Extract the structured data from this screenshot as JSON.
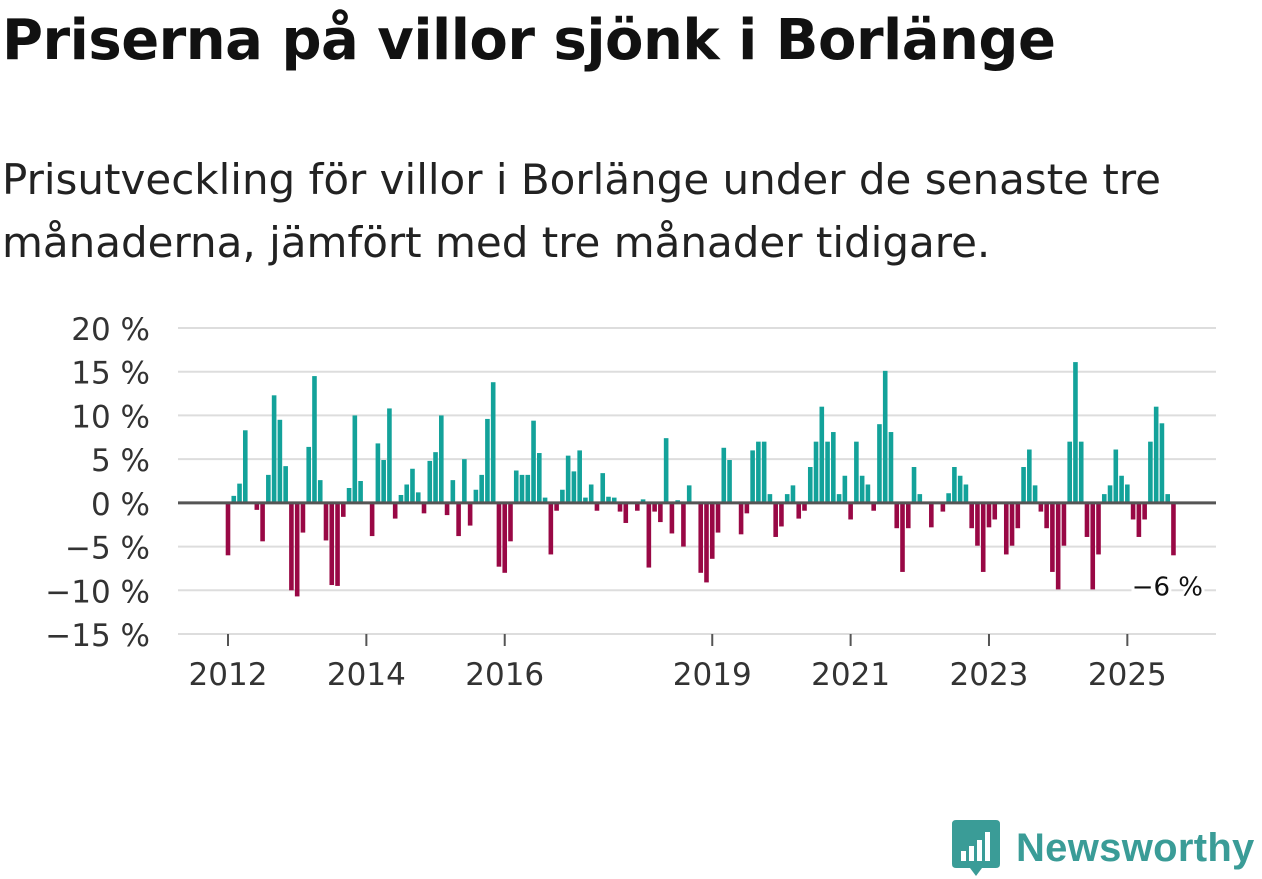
{
  "header": {
    "title": "Priserna på villor sjönk i Borlänge",
    "subtitle": "Prisutveckling för villor i Borlänge under de senaste tre månaderna, jämfört med tre månader tidigare."
  },
  "brand": {
    "name": "Newsworthy",
    "logo_icon": "bar-chart-speech-bubble-icon"
  },
  "colors": {
    "positive": "#13a29a",
    "negative": "#990845",
    "grid": "#dddddd",
    "zero_line": "#555555",
    "tick_text": "#333333",
    "brand": "#3a9c97"
  },
  "chart_data": {
    "type": "bar",
    "title": "Priserna på villor sjönk i Borlänge",
    "subtitle": "Prisutveckling för villor i Borlänge under de senaste tre månaderna, jämfört med tre månader tidigare.",
    "xlabel": "",
    "ylabel": "",
    "unit": "%",
    "ylim": [
      -15,
      20
    ],
    "yticks": [
      20,
      15,
      10,
      5,
      0,
      -5,
      -10,
      -15
    ],
    "ytick_labels": [
      "20 %",
      "15 %",
      "10 %",
      "5 %",
      "0 %",
      "−5 %",
      "−10 %",
      "−15 %"
    ],
    "xticks": [
      {
        "label": "2012",
        "index": 0
      },
      {
        "label": "2014",
        "index": 24
      },
      {
        "label": "2016",
        "index": 48
      },
      {
        "label": "2019",
        "index": 84
      },
      {
        "label": "2021",
        "index": 108
      },
      {
        "label": "2023",
        "index": 132
      },
      {
        "label": "2025",
        "index": 156
      }
    ],
    "series_start": "2012-01",
    "frequency": "monthly",
    "values": [
      -6,
      0.8,
      2.2,
      8.3,
      0,
      -0.8,
      -4.4,
      3.2,
      12.3,
      9.5,
      4.2,
      -10,
      -10.7,
      -3.4,
      6.4,
      14.5,
      2.6,
      -4.3,
      -9.4,
      -9.5,
      -1.6,
      1.7,
      10,
      2.5,
      0,
      -3.8,
      6.8,
      4.9,
      10.8,
      -1.8,
      0.9,
      2.1,
      3.9,
      1.2,
      -1.2,
      4.8,
      5.8,
      10,
      -1.4,
      2.6,
      -3.8,
      5,
      -2.6,
      1.5,
      3.2,
      9.6,
      13.8,
      -7.3,
      -8,
      -4.4,
      3.7,
      3.2,
      3.2,
      9.4,
      5.7,
      0.6,
      -5.9,
      -0.9,
      1.5,
      5.4,
      3.6,
      6,
      0.6,
      2.1,
      -0.9,
      3.4,
      0.7,
      0.6,
      -1,
      -2.3,
      0.1,
      -0.9,
      0.4,
      -7.4,
      -1,
      -2.2,
      7.4,
      -3.5,
      0.3,
      -5,
      2,
      0,
      -8,
      -9.1,
      -6.4,
      -3.4,
      6.3,
      4.9,
      0,
      -3.6,
      -1.2,
      6,
      7,
      7,
      1,
      -3.9,
      -2.7,
      1,
      2,
      -1.8,
      -0.9,
      4.1,
      7,
      11,
      7,
      8.1,
      1,
      3.1,
      -1.9,
      7,
      3.1,
      2.1,
      -0.9,
      9,
      15.1,
      8.1,
      -2.9,
      -7.9,
      -2.9,
      4.1,
      1,
      0,
      -2.8,
      0,
      -1,
      1.1,
      4.1,
      3.1,
      2.1,
      -2.9,
      -4.9,
      -7.9,
      -2.8,
      -1.9,
      0,
      -5.9,
      -4.9,
      -2.9,
      4.1,
      6.1,
      2,
      -1,
      -2.9,
      -7.9,
      -9.9,
      -4.9,
      7,
      16.1,
      7,
      -3.9,
      -9.9,
      -5.9,
      1,
      2,
      6.1,
      3.1,
      2.1,
      -1.9,
      -3.9,
      -1.9,
      7,
      11,
      9.1,
      1,
      -6
    ],
    "annotation": {
      "label": "−6 %",
      "index": 169,
      "value": -6
    }
  }
}
